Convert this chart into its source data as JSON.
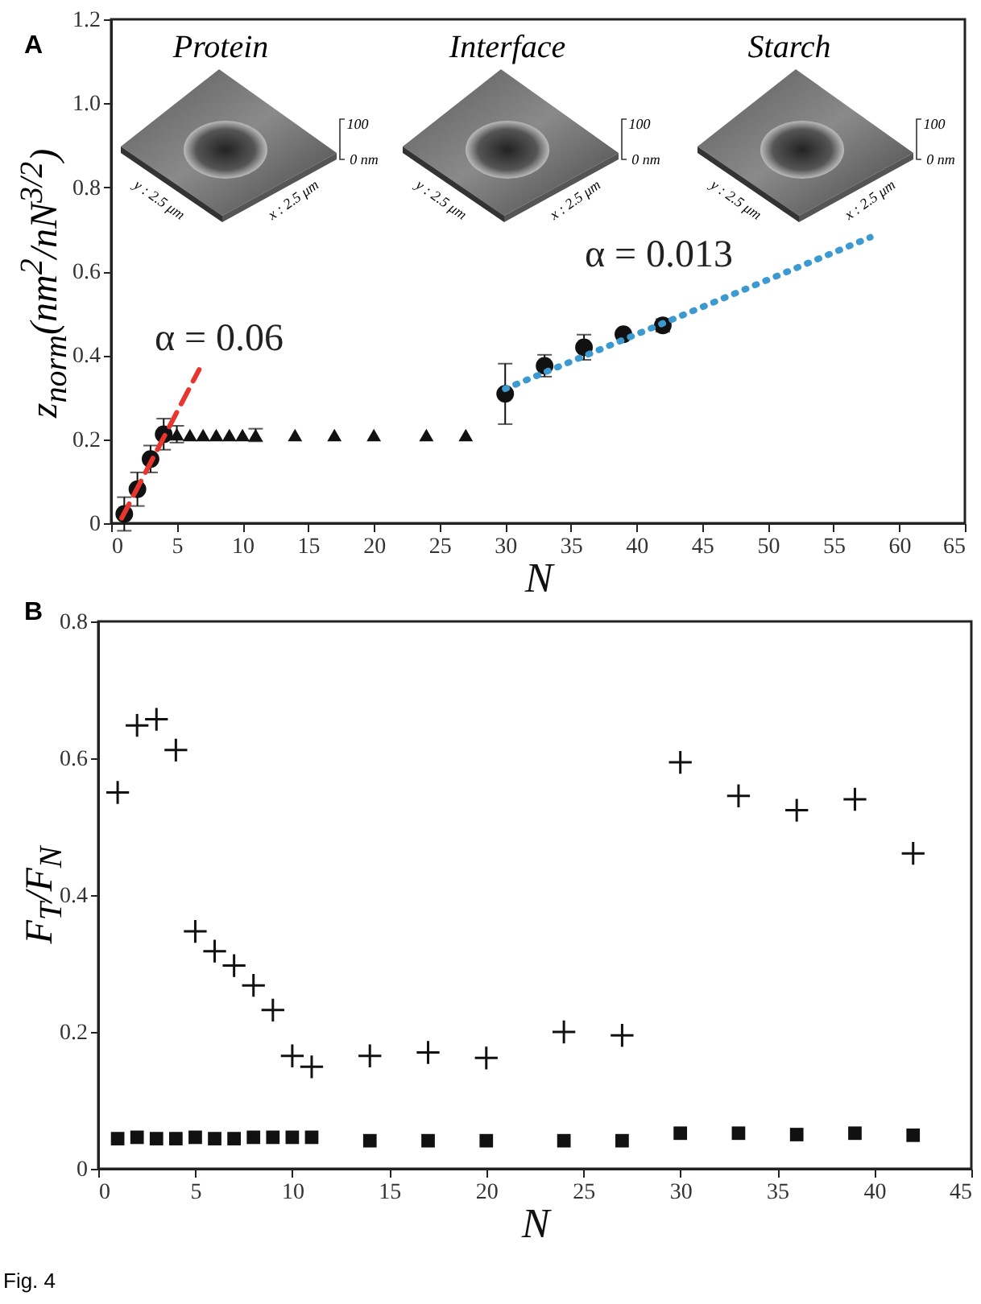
{
  "chart_data": [
    {
      "type": "scatter",
      "title": "A",
      "xlabel": "N",
      "ylabel": "z$_{norm}$(nm$^{2}$/nN$^{3/2}$)",
      "xlim": [
        0,
        65
      ],
      "xticks": [
        0,
        5,
        10,
        15,
        20,
        25,
        30,
        35,
        40,
        45,
        50,
        55,
        60,
        65
      ],
      "ylim": [
        0,
        1.2
      ],
      "yticks": [
        0,
        0.2,
        0.4,
        0.6,
        0.8,
        {
          "value": 1,
          "label": "1.0"
        },
        1.2
      ],
      "series": [
        {
          "color": "#111111",
          "marker": "circle",
          "x": [
            1,
            2,
            3,
            4,
            30,
            33,
            36,
            39,
            42
          ],
          "values": [
            0.022,
            0.081,
            0.153,
            0.212,
            0.308,
            0.375,
            0.419,
            0.45,
            0.471
          ],
          "errors": [
            0.04,
            0.04,
            0.032,
            0.037,
            0.072,
            0.026,
            0.03,
            0.01,
            0.015
          ]
        },
        {
          "color": "#111111",
          "marker": "triangle",
          "x": [
            5,
            6,
            7,
            8,
            9,
            10,
            11,
            14,
            17,
            20,
            24,
            27
          ],
          "values": [
            0.212,
            0.21,
            0.21,
            0.21,
            0.21,
            0.21,
            0.21,
            0.21,
            0.21,
            0.21,
            0.21,
            0.21
          ],
          "errors": [
            0.02,
            null,
            null,
            null,
            null,
            null,
            0.015,
            null,
            null,
            null,
            null,
            null
          ]
        },
        {
          "type": "line",
          "color": "#e8352e",
          "line_style": "dashed",
          "marker": "none",
          "x": [
            0.8,
            6.7
          ],
          "values": [
            0.012,
            0.366
          ]
        },
        {
          "type": "line",
          "color": "#3d9ad1",
          "line_style": "dotted",
          "marker": "none",
          "x": [
            30,
            57.8
          ],
          "values": [
            0.32,
            0.681
          ]
        }
      ],
      "annotations": [
        "Protein",
        "Interface",
        "Starch",
        "100",
        "0 nm",
        "y : 2.5 μm",
        "x : 2.5 μm",
        "100",
        "0 nm",
        "y : 2.5 μm",
        "x : 2.5 μm",
        "100",
        "0 nm",
        "y : 2.5 μm",
        "x : 2.5 μm",
        "α = 0.06",
        "α = 0.013"
      ]
    },
    {
      "type": "scatter",
      "title": "B",
      "xlabel": "N",
      "ylabel": "F$_{T}$/F$_{N}$",
      "xlim": [
        0,
        45
      ],
      "xticks": [
        0,
        5,
        10,
        15,
        20,
        25,
        30,
        35,
        40,
        45
      ],
      "ylim": [
        0,
        0.8
      ],
      "yticks": [
        0,
        0.2,
        0.4,
        0.6,
        0.8
      ],
      "series": [
        {
          "color": "#111111",
          "marker": "cross",
          "x": [
            1,
            2,
            3,
            4,
            5,
            6,
            7,
            8,
            9,
            10,
            11,
            14,
            17,
            20,
            24,
            27,
            30,
            33,
            36,
            39,
            42
          ],
          "values": [
            0.55,
            0.648,
            0.657,
            0.612,
            0.347,
            0.318,
            0.297,
            0.268,
            0.232,
            0.165,
            0.149,
            0.165,
            0.17,
            0.162,
            0.2,
            0.195,
            0.594,
            0.545,
            0.524,
            0.54,
            0.461
          ]
        },
        {
          "color": "#111111",
          "marker": "square",
          "x": [
            1,
            2,
            3,
            4,
            5,
            6,
            7,
            8,
            9,
            10,
            11,
            14,
            17,
            20,
            24,
            27,
            30,
            33,
            36,
            39,
            42
          ],
          "values": [
            0.044,
            0.046,
            0.044,
            0.044,
            0.046,
            0.044,
            0.044,
            0.046,
            0.046,
            0.046,
            0.046,
            0.041,
            0.041,
            0.041,
            0.041,
            0.041,
            0.052,
            0.052,
            0.05,
            0.052,
            0.049
          ]
        }
      ],
      "annotations": [
        "Fig. 4"
      ]
    }
  ]
}
